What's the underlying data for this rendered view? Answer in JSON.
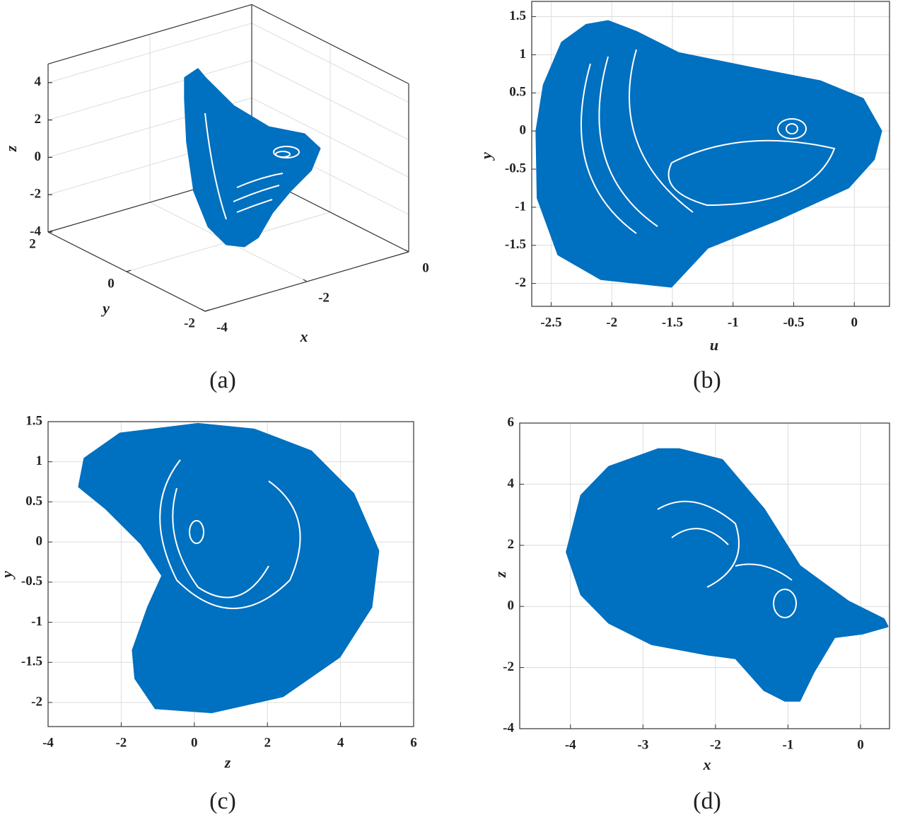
{
  "chart_data": [
    {
      "type": "line3d",
      "caption": "(a)",
      "xlabel": "x",
      "ylabel": "y",
      "zlabel": "z",
      "color": "#0070c0",
      "grid": true,
      "xlim": [
        -4,
        0
      ],
      "ylim": [
        -2,
        2
      ],
      "zlim": [
        -4,
        5
      ],
      "xticks": [
        -4,
        -2,
        0
      ],
      "yticks": [
        -2,
        0,
        2
      ],
      "zticks": [
        -4,
        -2,
        0,
        2,
        4
      ],
      "series": [
        {
          "color": "#0070c0",
          "x": [
            -2.85,
            -2.6,
            -2.46,
            -1.9,
            -1.21,
            -0.51,
            -0.21,
            -0.38,
            -0.79,
            -1.14,
            -1.42,
            -1.69,
            -2.04,
            -2.39,
            -2.67,
            -2.81,
            -2.85
          ],
          "y": [
            0,
            0,
            0,
            0,
            0,
            0,
            0,
            0,
            0,
            0,
            0,
            0,
            0,
            0,
            0,
            0,
            0
          ],
          "z": [
            5.46,
            5.72,
            5.15,
            3.19,
            1.51,
            0.58,
            -0.42,
            -1.43,
            -2.23,
            -3.1,
            -4.2,
            -4.47,
            -4.08,
            -2.86,
            -0.74,
            2.02,
            4.33
          ]
        }
      ]
    },
    {
      "type": "area",
      "caption": "(b)",
      "xlabel": "u",
      "ylabel": "y",
      "color": "#0070c0",
      "grid": true,
      "xlim": [
        -2.66,
        0.29
      ],
      "ylim": [
        -2.3,
        1.7
      ],
      "xticks": [
        -2.5,
        -2,
        -1.5,
        -1,
        -0.5,
        0
      ],
      "yticks": [
        -2,
        -1.5,
        -1,
        -0.5,
        0,
        0.5,
        1,
        1.5
      ],
      "series": [
        {
          "color": "#0070c0",
          "x": [
            -2.56,
            -2.41,
            -2.21,
            -2.03,
            -1.8,
            -1.45,
            -0.86,
            -0.28,
            0.07,
            0.22,
            0.16,
            -0.05,
            -0.63,
            -1.21,
            -1.51,
            -2.09,
            -2.44,
            -2.61,
            -2.62
          ],
          "y": [
            0.6,
            1.16,
            1.39,
            1.44,
            1.3,
            1.02,
            0.83,
            0.65,
            0.42,
            0,
            -0.37,
            -0.74,
            -1.16,
            -1.53,
            -2.04,
            -1.94,
            -1.62,
            -0.88,
            0
          ]
        }
      ]
    },
    {
      "type": "area",
      "caption": "(c)",
      "xlabel": "z",
      "ylabel": "y",
      "color": "#0070c0",
      "grid": true,
      "xlim": [
        -4,
        6
      ],
      "ylim": [
        -2.3,
        1.5
      ],
      "xticks": [
        -4,
        -2,
        0,
        2,
        4,
        6
      ],
      "yticks": [
        -2,
        -1.5,
        -1,
        -0.5,
        0,
        0.5,
        1,
        1.5
      ],
      "series": [
        {
          "color": "#0070c0",
          "x": [
            -3.15,
            -3.0,
            -2.03,
            0.1,
            1.64,
            3.19,
            4.35,
            5.03,
            4.84,
            3.97,
            2.42,
            0.48,
            -1.06,
            -1.61,
            -1.68,
            -1.26,
            -0.87,
            -1.45,
            -2.42
          ],
          "y": [
            0.69,
            1.04,
            1.35,
            1.47,
            1.4,
            1.13,
            0.6,
            -0.11,
            -0.81,
            -1.43,
            -1.92,
            -2.12,
            -2.07,
            -1.7,
            -1.35,
            -0.81,
            -0.42,
            -0.02,
            0.42
          ]
        }
      ]
    },
    {
      "type": "area",
      "caption": "(d)",
      "xlabel": "x",
      "ylabel": "z",
      "color": "#0070c0",
      "grid": true,
      "xlim": [
        -4.7,
        0.4
      ],
      "ylim": [
        -4,
        6
      ],
      "xticks": [
        -4,
        -3,
        -2,
        -1,
        0
      ],
      "yticks": [
        -4,
        -2,
        0,
        2,
        4,
        6
      ],
      "series": [
        {
          "color": "#0070c0",
          "x": [
            -4.05,
            -3.85,
            -3.47,
            -2.79,
            -2.5,
            -1.91,
            -1.33,
            -0.84,
            -0.17,
            0.32,
            0.37,
            0.03,
            -0.36,
            -0.65,
            -0.84,
            -1.04,
            -1.33,
            -1.72,
            -2.11,
            -2.88,
            -3.47,
            -3.85
          ],
          "y": [
            1.78,
            3.63,
            4.56,
            5.14,
            5.14,
            4.79,
            3.17,
            1.32,
            0.16,
            -0.42,
            -0.65,
            -0.88,
            -1.0,
            -2.15,
            -3.08,
            -3.08,
            -2.73,
            -1.69,
            -1.57,
            -1.23,
            -0.53,
            0.39
          ]
        }
      ]
    }
  ]
}
